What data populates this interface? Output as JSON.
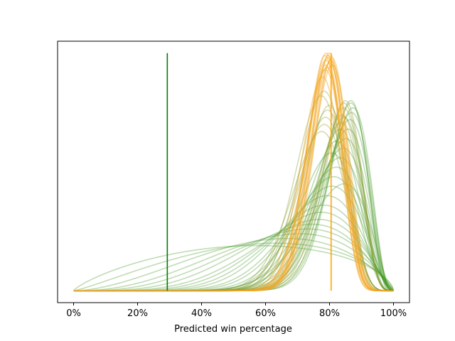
{
  "chart_data": {
    "type": "line",
    "title": "",
    "xlabel": "Predicted win percentage",
    "ylabel": "",
    "xlim": [
      -0.05,
      1.05
    ],
    "ylim": [
      -0.05,
      1.05
    ],
    "x_ticks": [
      {
        "value": 0.0,
        "label": "0%"
      },
      {
        "value": 0.2,
        "label": "20%"
      },
      {
        "value": 0.4,
        "label": "40%"
      },
      {
        "value": 0.6,
        "label": "60%"
      },
      {
        "value": 0.8,
        "label": "80%"
      },
      {
        "value": 1.0,
        "label": "100%"
      }
    ],
    "y_ticks_visible": false,
    "grid": false,
    "legend": "none",
    "colors": {
      "green_curves": "#4a9a2a",
      "olive_curves": "#8a9a2a",
      "orange_curves": "#f5a623",
      "green_marker": "#008000",
      "orange_marker": "#ffa500"
    },
    "vertical_markers": [
      {
        "x": 0.293,
        "color": "#008000"
      },
      {
        "x": 0.805,
        "color": "#ffa500"
      }
    ],
    "series_groups": [
      {
        "color": "#4a9a2a",
        "opacity": 0.35,
        "distribution": "beta",
        "curves": [
          {
            "a": 1.8,
            "b": 1.6,
            "peak": 0.19
          },
          {
            "a": 2.2,
            "b": 1.7,
            "peak": 0.2
          },
          {
            "a": 2.8,
            "b": 1.9,
            "peak": 0.22
          },
          {
            "a": 3.4,
            "b": 2.0,
            "peak": 0.24
          },
          {
            "a": 4.0,
            "b": 2.1,
            "peak": 0.26
          },
          {
            "a": 4.8,
            "b": 2.3,
            "peak": 0.28
          },
          {
            "a": 5.6,
            "b": 2.4,
            "peak": 0.3
          },
          {
            "a": 6.5,
            "b": 2.6,
            "peak": 0.33
          },
          {
            "a": 7.5,
            "b": 2.8,
            "peak": 0.36
          },
          {
            "a": 8.6,
            "b": 3.0,
            "peak": 0.4
          },
          {
            "a": 9.8,
            "b": 3.1,
            "peak": 0.44
          },
          {
            "a": 11.0,
            "b": 3.3,
            "peak": 0.48
          },
          {
            "a": 12.5,
            "b": 3.5,
            "peak": 0.52
          },
          {
            "a": 14.0,
            "b": 3.6,
            "peak": 0.56
          },
          {
            "a": 15.5,
            "b": 3.7,
            "peak": 0.6
          },
          {
            "a": 17.0,
            "b": 3.8,
            "peak": 0.64
          },
          {
            "a": 18.5,
            "b": 3.9,
            "peak": 0.68
          },
          {
            "a": 20.0,
            "b": 4.0,
            "peak": 0.72
          },
          {
            "a": 21.5,
            "b": 4.1,
            "peak": 0.75
          },
          {
            "a": 23.0,
            "b": 4.2,
            "peak": 0.77
          },
          {
            "a": 16.0,
            "b": 4.6,
            "peak": 0.58
          },
          {
            "a": 19.0,
            "b": 4.9,
            "peak": 0.63
          },
          {
            "a": 22.0,
            "b": 5.2,
            "peak": 0.68
          },
          {
            "a": 25.0,
            "b": 5.4,
            "peak": 0.73
          },
          {
            "a": 12.0,
            "b": 3.0,
            "peak": 0.45
          },
          {
            "a": 27.0,
            "b": 5.0,
            "peak": 0.79
          },
          {
            "a": 29.0,
            "b": 5.3,
            "peak": 0.8
          }
        ]
      },
      {
        "color": "#8a9a2a",
        "opacity": 0.35,
        "distribution": "beta",
        "curves": [
          {
            "a": 20.0,
            "b": 6.5,
            "peak": 0.67
          },
          {
            "a": 22.0,
            "b": 6.8,
            "peak": 0.7
          },
          {
            "a": 24.0,
            "b": 7.2,
            "peak": 0.73
          },
          {
            "a": 26.0,
            "b": 7.5,
            "peak": 0.76
          },
          {
            "a": 28.0,
            "b": 7.8,
            "peak": 0.78
          },
          {
            "a": 24.0,
            "b": 5.5,
            "peak": 0.71
          },
          {
            "a": 26.0,
            "b": 5.8,
            "peak": 0.74
          },
          {
            "a": 28.0,
            "b": 6.0,
            "peak": 0.77
          },
          {
            "a": 30.0,
            "b": 6.3,
            "peak": 0.79
          },
          {
            "a": 32.0,
            "b": 6.5,
            "peak": 0.8
          },
          {
            "a": 25.0,
            "b": 8.0,
            "peak": 0.82
          },
          {
            "a": 27.0,
            "b": 8.2,
            "peak": 0.84
          }
        ]
      },
      {
        "color": "#f5a623",
        "opacity": 0.45,
        "distribution": "beta",
        "curves": [
          {
            "a": 36.0,
            "b": 11.0,
            "peak": 0.9
          },
          {
            "a": 38.0,
            "b": 11.0,
            "peak": 0.93
          },
          {
            "a": 40.0,
            "b": 11.5,
            "peak": 0.95
          },
          {
            "a": 42.0,
            "b": 12.0,
            "peak": 0.97
          },
          {
            "a": 44.0,
            "b": 12.0,
            "peak": 0.98
          },
          {
            "a": 46.0,
            "b": 12.5,
            "peak": 0.99
          },
          {
            "a": 48.0,
            "b": 12.8,
            "peak": 1.0
          },
          {
            "a": 41.0,
            "b": 11.0,
            "peak": 0.96
          },
          {
            "a": 43.0,
            "b": 11.2,
            "peak": 0.97
          },
          {
            "a": 45.0,
            "b": 11.5,
            "peak": 0.98
          },
          {
            "a": 37.0,
            "b": 10.5,
            "peak": 0.94
          },
          {
            "a": 39.0,
            "b": 10.0,
            "peak": 0.95
          },
          {
            "a": 47.0,
            "b": 13.5,
            "peak": 0.99
          },
          {
            "a": 49.0,
            "b": 13.8,
            "peak": 1.0
          }
        ]
      }
    ]
  }
}
